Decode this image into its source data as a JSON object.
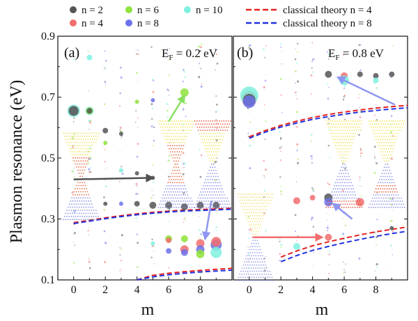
{
  "chart_data": {
    "type": "scatter",
    "ylabel": "Plasmon resonance (eV)",
    "xlabel": "m",
    "xlim": [
      -1,
      10
    ],
    "ylim": [
      0.1,
      0.9
    ],
    "xticks": [
      "0",
      "2",
      "4",
      "6",
      "8"
    ],
    "yticks": [
      "0.1",
      "0.3",
      "0.5",
      "0.7",
      "0.9"
    ],
    "legend": {
      "position": "top",
      "series": [
        {
          "key": "n2",
          "label": "n = 2",
          "color": "#555555"
        },
        {
          "key": "n4",
          "label": "n = 4",
          "color": "#f26d6d"
        },
        {
          "key": "n6",
          "label": "n = 6",
          "color": "#8fe23a"
        },
        {
          "key": "n8",
          "label": "n = 8",
          "color": "#6c72ea"
        },
        {
          "key": "n10",
          "label": "n = 10",
          "color": "#7ff0df"
        }
      ],
      "theory": [
        {
          "key": "t4",
          "label": "classical theory n = 4",
          "color": "#e82020"
        },
        {
          "key": "t8",
          "label": "classical theory n = 8",
          "color": "#2030e0"
        }
      ]
    },
    "panels": [
      {
        "id": "a",
        "label": "(a)",
        "ef_label": "E",
        "ef_sub": "F",
        "ef_value": " = 0.2 eV",
        "points": [
          {
            "m": 0,
            "e": 0.655,
            "n": "n4",
            "s": 8
          },
          {
            "m": 0,
            "e": 0.655,
            "n": "n10",
            "s": 9
          },
          {
            "m": 0,
            "e": 0.655,
            "n": "n2",
            "s": 7
          },
          {
            "m": 1,
            "e": 0.83,
            "n": "n10",
            "s": 4
          },
          {
            "m": 1,
            "e": 0.655,
            "n": "n10",
            "s": 6
          },
          {
            "m": 1,
            "e": 0.655,
            "n": "n6",
            "s": 5
          },
          {
            "m": 1,
            "e": 0.655,
            "n": "n2",
            "s": 4
          },
          {
            "m": 2,
            "e": 0.59,
            "n": "n2",
            "s": 4
          },
          {
            "m": 2,
            "e": 0.55,
            "n": "n6",
            "s": 3
          },
          {
            "m": 2,
            "e": 0.35,
            "n": "n2",
            "s": 3
          },
          {
            "m": 3,
            "e": 0.58,
            "n": "n2",
            "s": 3
          },
          {
            "m": 3,
            "e": 0.46,
            "n": "n10",
            "s": 3
          },
          {
            "m": 3,
            "e": 0.35,
            "n": "n8",
            "s": 3
          },
          {
            "m": 4,
            "e": 0.35,
            "n": "n2",
            "s": 4
          },
          {
            "m": 4,
            "e": 0.685,
            "n": "n6",
            "s": 3
          },
          {
            "m": 4,
            "e": 0.45,
            "n": "n2",
            "s": 3
          },
          {
            "m": 5,
            "e": 0.435,
            "n": "n2",
            "s": 3
          },
          {
            "m": 5,
            "e": 0.345,
            "n": "n2",
            "s": 5
          },
          {
            "m": 5,
            "e": 0.69,
            "n": "n8",
            "s": 3
          },
          {
            "m": 5,
            "e": 0.22,
            "n": "n10",
            "s": 3
          },
          {
            "m": 6,
            "e": 0.345,
            "n": "n2",
            "s": 5
          },
          {
            "m": 6,
            "e": 0.235,
            "n": "n6",
            "s": 5
          },
          {
            "m": 6,
            "e": 0.195,
            "n": "n8",
            "s": 4
          },
          {
            "m": 6,
            "e": 0.23,
            "n": "n4",
            "s": 4
          },
          {
            "m": 7,
            "e": 0.715,
            "n": "n6",
            "s": 6
          },
          {
            "m": 7,
            "e": 0.34,
            "n": "n2",
            "s": 5
          },
          {
            "m": 7,
            "e": 0.235,
            "n": "n6",
            "s": 5
          },
          {
            "m": 7,
            "e": 0.2,
            "n": "n4",
            "s": 6
          },
          {
            "m": 7,
            "e": 0.19,
            "n": "n8",
            "s": 5
          },
          {
            "m": 8,
            "e": 0.345,
            "n": "n2",
            "s": 5
          },
          {
            "m": 8,
            "e": 0.22,
            "n": "n4",
            "s": 6
          },
          {
            "m": 8,
            "e": 0.2,
            "n": "n8",
            "s": 6
          },
          {
            "m": 8,
            "e": 0.185,
            "n": "n6",
            "s": 6
          },
          {
            "m": 9,
            "e": 0.345,
            "n": "n2",
            "s": 5
          },
          {
            "m": 9,
            "e": 0.215,
            "n": "n8",
            "s": 8
          },
          {
            "m": 9,
            "e": 0.19,
            "n": "n10",
            "s": 8
          },
          {
            "m": 9,
            "e": 0.225,
            "n": "n4",
            "s": 7
          }
        ],
        "theory_upper": {
          "x": [
            0,
            1,
            2,
            3,
            4,
            5,
            6,
            7,
            8,
            9,
            10
          ],
          "t4": [
            0.288,
            0.296,
            0.304,
            0.311,
            0.317,
            0.322,
            0.326,
            0.329,
            0.331,
            0.333,
            0.335
          ],
          "t8": [
            0.285,
            0.293,
            0.301,
            0.308,
            0.314,
            0.319,
            0.323,
            0.326,
            0.328,
            0.33,
            0.332
          ]
        },
        "theory_lower": {
          "x": [
            4,
            5,
            6,
            7,
            8,
            9,
            10
          ],
          "t4": [
            0.1,
            0.115,
            0.122,
            0.127,
            0.131,
            0.135,
            0.138
          ],
          "t8": [
            0.1,
            0.11,
            0.117,
            0.122,
            0.126,
            0.129,
            0.132
          ]
        }
      },
      {
        "id": "b",
        "label": "(b)",
        "ef_label": "E",
        "ef_sub": "F",
        "ef_value": " = 0.8 eV",
        "points": [
          {
            "m": 0,
            "e": 0.695,
            "n": "n4",
            "s": 11
          },
          {
            "m": 0,
            "e": 0.705,
            "n": "n10",
            "s": 13
          },
          {
            "m": 0,
            "e": 0.69,
            "n": "n2",
            "s": 9
          },
          {
            "m": 0,
            "e": 0.685,
            "n": "n8",
            "s": 9
          },
          {
            "m": 3,
            "e": 0.36,
            "n": "n4",
            "s": 5
          },
          {
            "m": 3,
            "e": 0.21,
            "n": "n10",
            "s": 5
          },
          {
            "m": 4,
            "e": 0.37,
            "n": "n4",
            "s": 4
          },
          {
            "m": 5,
            "e": 0.775,
            "n": "n2",
            "s": 5
          },
          {
            "m": 5,
            "e": 0.37,
            "n": "n2",
            "s": 6
          },
          {
            "m": 5,
            "e": 0.355,
            "n": "n8",
            "s": 6
          },
          {
            "m": 5,
            "e": 0.24,
            "n": "n4",
            "s": 5
          },
          {
            "m": 6,
            "e": 0.77,
            "n": "n4",
            "s": 5
          },
          {
            "m": 6,
            "e": 0.755,
            "n": "n10",
            "s": 7
          },
          {
            "m": 7,
            "e": 0.775,
            "n": "n2",
            "s": 4
          },
          {
            "m": 7,
            "e": 0.355,
            "n": "n4",
            "s": 6
          },
          {
            "m": 8,
            "e": 0.77,
            "n": "n2",
            "s": 4
          },
          {
            "m": 8,
            "e": 0.755,
            "n": "n10",
            "s": 4
          },
          {
            "m": 9,
            "e": 0.775,
            "n": "n2",
            "s": 4
          },
          {
            "m": 9,
            "e": 0.27,
            "n": "n2",
            "s": 3
          }
        ],
        "theory_upper": {
          "x": [
            0,
            1,
            2,
            3,
            4,
            5,
            6,
            7,
            8,
            9,
            10
          ],
          "t4": [
            0.57,
            0.59,
            0.607,
            0.621,
            0.633,
            0.643,
            0.651,
            0.658,
            0.664,
            0.669,
            0.673
          ],
          "t8": [
            0.565,
            0.585,
            0.602,
            0.615,
            0.627,
            0.636,
            0.644,
            0.651,
            0.656,
            0.661,
            0.665
          ]
        },
        "theory_lower": {
          "x": [
            2,
            3,
            4,
            5,
            6,
            7,
            8,
            9,
            10
          ],
          "t4": [
            0.175,
            0.195,
            0.212,
            0.225,
            0.237,
            0.248,
            0.258,
            0.266,
            0.274
          ],
          "t8": [
            0.16,
            0.18,
            0.197,
            0.21,
            0.222,
            0.233,
            0.243,
            0.252,
            0.26
          ]
        }
      }
    ],
    "arrows": [
      {
        "panel": "a",
        "from": [
          0,
          0.43
        ],
        "to": [
          5,
          0.435
        ],
        "color": "#505050"
      },
      {
        "panel": "a",
        "from": [
          6,
          0.62
        ],
        "to": [
          7,
          0.705
        ],
        "color": "#88e060"
      },
      {
        "panel": "a",
        "from": [
          8.7,
          0.36
        ],
        "to": [
          8.3,
          0.235
        ],
        "color": "#8e96f0"
      },
      {
        "panel": "b",
        "from": [
          9.2,
          0.675
        ],
        "to": [
          5.6,
          0.765
        ],
        "color": "#8e96f0"
      },
      {
        "panel": "b",
        "from": [
          6.5,
          0.3
        ],
        "to": [
          5.3,
          0.35
        ],
        "color": "#8e96f0"
      },
      {
        "panel": "b",
        "from": [
          0.2,
          0.24
        ],
        "to": [
          4.6,
          0.24
        ],
        "color": "#f26d6d"
      }
    ],
    "insets": [
      {
        "panel": "a",
        "m": 0.5,
        "e": 0.44,
        "red": "center"
      },
      {
        "panel": "a",
        "m": 6.5,
        "e": 0.48,
        "red": "center"
      },
      {
        "panel": "a",
        "m": 8.8,
        "e": 0.48,
        "red": "top"
      },
      {
        "panel": "b",
        "m": 0.4,
        "e": 0.24,
        "red": "none"
      },
      {
        "panel": "b",
        "m": 6.0,
        "e": 0.48,
        "red": "bottom"
      },
      {
        "panel": "b",
        "m": 8.7,
        "e": 0.48,
        "red": "middle"
      }
    ]
  }
}
